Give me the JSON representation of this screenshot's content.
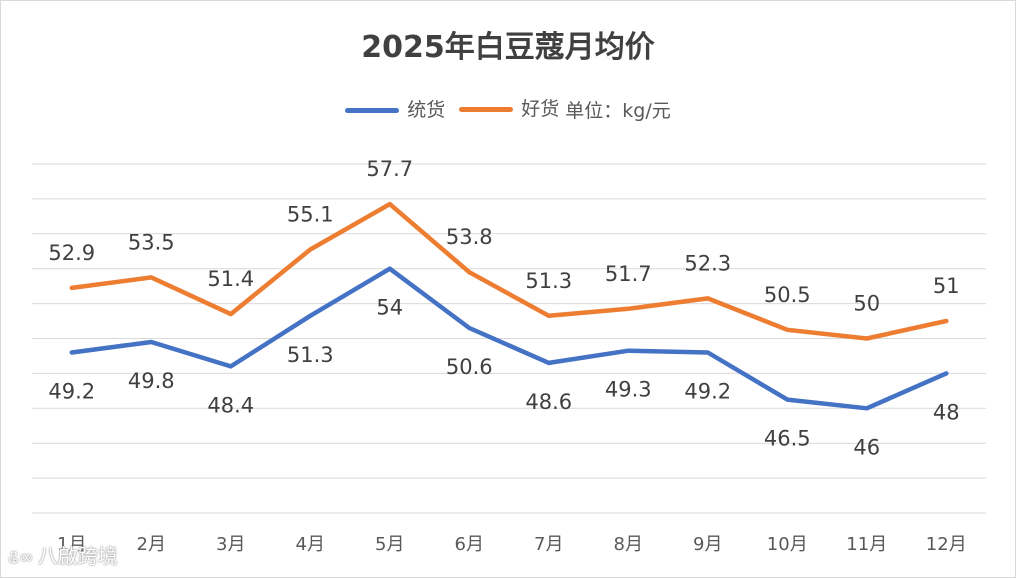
{
  "colors": {
    "series_bulk": "#4472c4",
    "series_good": "#ed7d31",
    "grid": "#d9d9d9",
    "text": "#404040"
  },
  "legend": {
    "unit": "单位：kg/元"
  },
  "watermark": {
    "icon": "watermark-logo-icon",
    "text": "八啟跨境"
  },
  "chart_data": {
    "type": "line",
    "title": "2025年白豆蔻月均价",
    "xlabel": "",
    "ylabel": "",
    "categories": [
      "1月",
      "2月",
      "3月",
      "4月",
      "5月",
      "6月",
      "7月",
      "8月",
      "9月",
      "10月",
      "11月",
      "12月"
    ],
    "series": [
      {
        "name": "统货",
        "values": [
          49.2,
          49.8,
          48.4,
          51.3,
          54,
          50.6,
          48.6,
          49.3,
          49.2,
          46.5,
          46,
          48
        ]
      },
      {
        "name": "好货",
        "values": [
          52.9,
          53.5,
          51.4,
          55.1,
          57.7,
          53.8,
          51.3,
          51.7,
          52.3,
          50.5,
          50,
          51
        ]
      }
    ],
    "ylim": [
      40,
      60
    ],
    "grid": true,
    "legend_position": "top"
  }
}
